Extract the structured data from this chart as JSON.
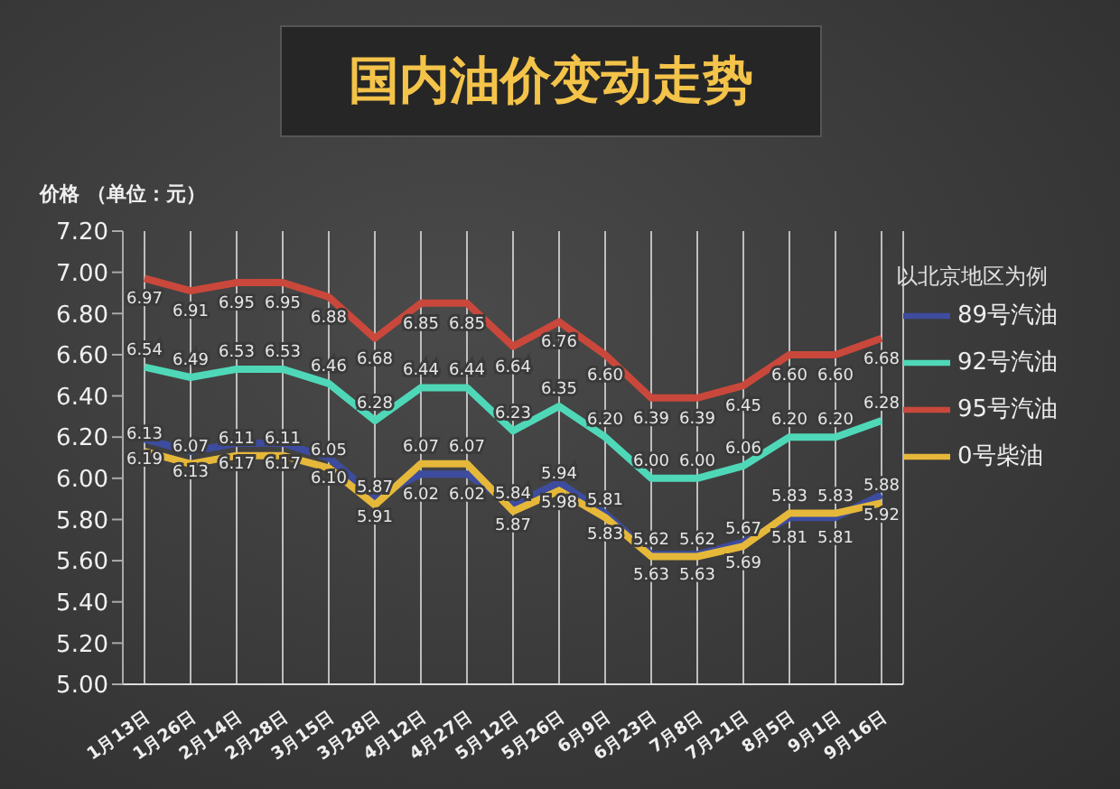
{
  "chart_data": {
    "type": "line",
    "title": "国内油价变动走势",
    "ylabel": "价格 （单位：元）",
    "legend_title": "以北京地区为例",
    "categories": [
      "1月13日",
      "1月26日",
      "2月14日",
      "2月28日",
      "3月15日",
      "3月28日",
      "4月12日",
      "4月27日",
      "5月12日",
      "5月26日",
      "6月9日",
      "6月23日",
      "7月8日",
      "7月21日",
      "8月5日",
      "9月1日",
      "9月16日"
    ],
    "series": [
      {
        "name": "89号汽油",
        "color": "#3d4c9e",
        "values": [
          6.19,
          6.13,
          6.17,
          6.17,
          6.1,
          5.91,
          6.02,
          6.02,
          5.87,
          5.98,
          5.83,
          5.63,
          5.63,
          5.69,
          5.81,
          5.81,
          5.92
        ],
        "value_labels": [
          "6.19",
          "6.13",
          "6.17",
          "6.17",
          "6.10",
          "5.91",
          "6.02",
          "6.02",
          "5.87",
          "5.98",
          "5.83",
          "5.63",
          "5.63",
          "5.69",
          "5.81",
          "5.81",
          "5.92"
        ]
      },
      {
        "name": "92号汽油",
        "color": "#4fd8b8",
        "values": [
          6.54,
          6.49,
          6.53,
          6.53,
          6.46,
          6.28,
          6.44,
          6.44,
          6.23,
          6.35,
          6.2,
          6.0,
          6.0,
          6.06,
          6.2,
          6.2,
          6.28
        ],
        "value_labels": [
          "6.54",
          "6.49",
          "6.53",
          "6.53",
          "6.46",
          "6.28",
          "6.44",
          "6.44",
          "6.23",
          "6.35",
          "6.20",
          "6.00",
          "6.00",
          "6.06",
          "6.20",
          "6.20",
          "6.28"
        ]
      },
      {
        "name": "95号汽油",
        "color": "#c9483b",
        "values": [
          6.97,
          6.91,
          6.95,
          6.95,
          6.88,
          6.68,
          6.85,
          6.85,
          6.64,
          6.76,
          6.6,
          6.39,
          6.39,
          6.45,
          6.6,
          6.6,
          6.68
        ],
        "value_labels": [
          "6.97",
          "6.91",
          "6.95",
          "6.95",
          "6.88",
          "6.68",
          "6.85",
          "6.85",
          "6.64",
          "6.76",
          "6.60",
          "6.39",
          "6.39",
          "6.45",
          "6.60",
          "6.60",
          "6.68"
        ]
      },
      {
        "name": "0号柴油",
        "color": "#e6b83a",
        "values": [
          6.13,
          6.07,
          6.11,
          6.11,
          6.05,
          5.87,
          6.07,
          6.07,
          5.84,
          5.94,
          5.81,
          5.62,
          5.62,
          5.67,
          5.83,
          5.83,
          5.88
        ],
        "value_labels": [
          "6.13",
          "6.07",
          "6.11",
          "6.11",
          "6.05",
          "5.87",
          "6.07",
          "6.07",
          "5.84",
          "5.94",
          "5.81",
          "5.62",
          "5.62",
          "5.67",
          "5.83",
          "5.83",
          "5.88"
        ]
      }
    ],
    "ylim": [
      5.0,
      7.2
    ],
    "yticks": [
      {
        "value": 5.0,
        "label": "5.00"
      },
      {
        "value": 5.2,
        "label": "5.20"
      },
      {
        "value": 5.4,
        "label": "5.40"
      },
      {
        "value": 5.6,
        "label": "5.60"
      },
      {
        "value": 5.8,
        "label": "5.80"
      },
      {
        "value": 6.0,
        "label": "6.00"
      },
      {
        "value": 6.2,
        "label": "6.20"
      },
      {
        "value": 6.4,
        "label": "6.40"
      },
      {
        "value": 6.6,
        "label": "6.60"
      },
      {
        "value": 6.8,
        "label": "6.80"
      },
      {
        "value": 7.0,
        "label": "7.00"
      },
      {
        "value": 7.2,
        "label": "7.20"
      }
    ],
    "grid": "x",
    "legend": "right",
    "marker": "none",
    "line_style": "solid"
  }
}
